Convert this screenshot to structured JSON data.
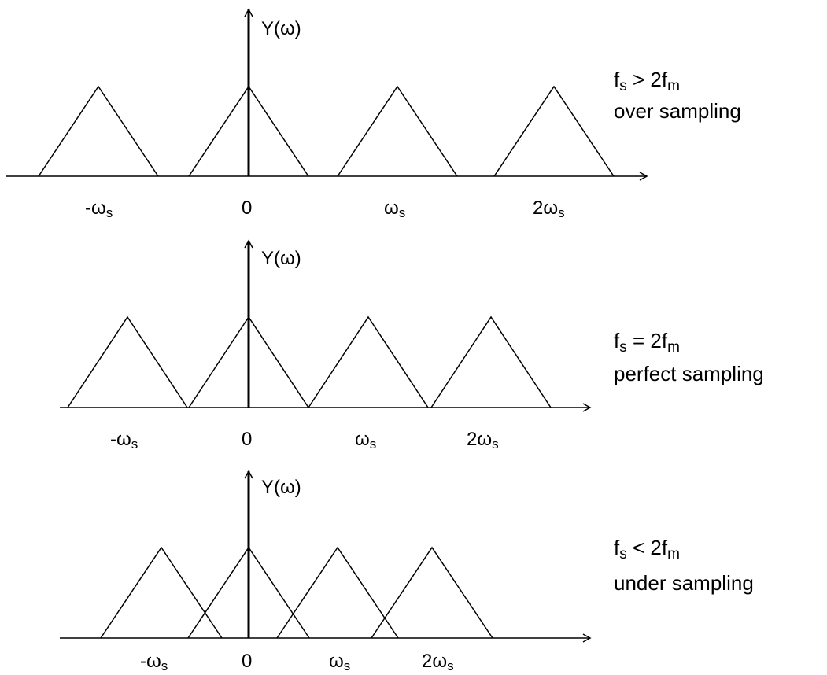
{
  "panels": [
    {
      "name": "over",
      "y_label": "Y(ω)",
      "ticks": [
        {
          "main": "-ω",
          "sub": "s"
        },
        {
          "main": "0",
          "sub": ""
        },
        {
          "main": "ω",
          "sub": "s"
        },
        {
          "main": "2ω",
          "sub": "s"
        }
      ],
      "condition": {
        "a": "f",
        "a_sub": "s",
        "op": " > 2f",
        "b_sub": "m"
      },
      "description": "over sampling"
    },
    {
      "name": "perfect",
      "y_label": "Y(ω)",
      "ticks": [
        {
          "main": "-ω",
          "sub": "s"
        },
        {
          "main": "0",
          "sub": ""
        },
        {
          "main": "ω",
          "sub": "s"
        },
        {
          "main": "2ω",
          "sub": "s"
        }
      ],
      "condition": {
        "a": "f",
        "a_sub": "s",
        "op": " = 2f",
        "b_sub": "m"
      },
      "description": "perfect sampling"
    },
    {
      "name": "under",
      "y_label": "Y(ω)",
      "ticks": [
        {
          "main": "-ω",
          "sub": "s"
        },
        {
          "main": "0",
          "sub": ""
        },
        {
          "main": "ω",
          "sub": "s"
        },
        {
          "main": "2ω",
          "sub": "s"
        }
      ],
      "condition": {
        "a": "f",
        "a_sub": "s",
        "op": " < 2f",
        "b_sub": "m"
      },
      "description": "under sampling"
    }
  ]
}
